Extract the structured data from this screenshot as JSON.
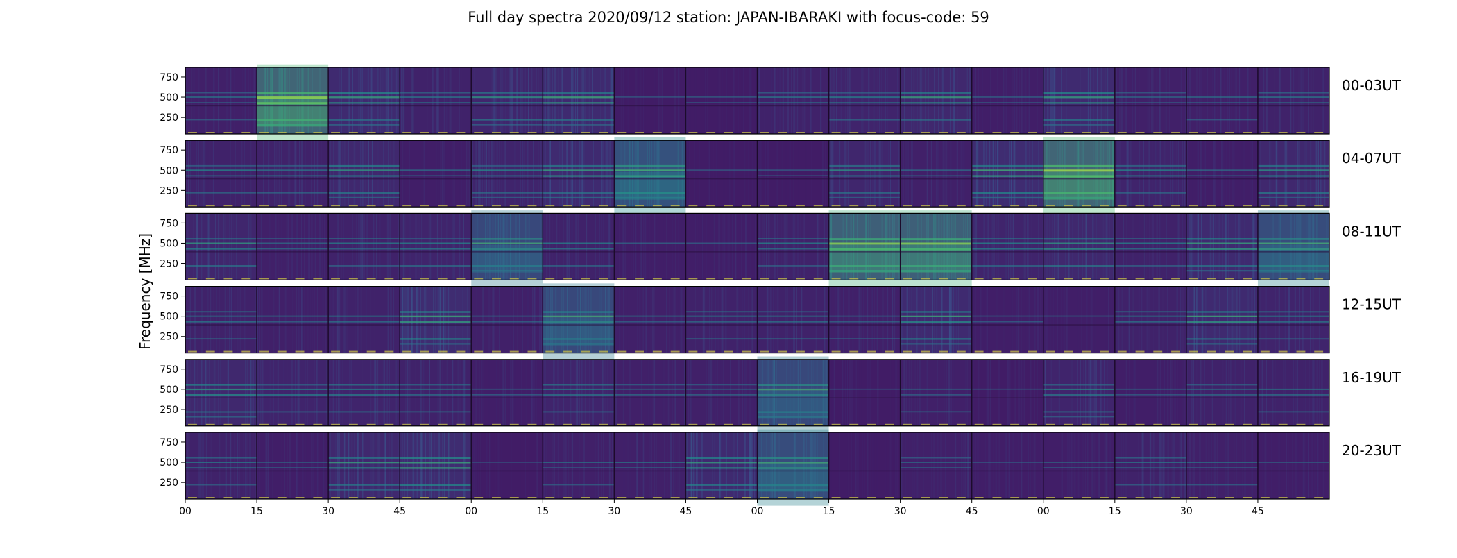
{
  "chart_data": {
    "type": "heatmap",
    "title": "Full day spectra 2020/09/12 station: JAPAN-IBARAKI with focus-code: 59",
    "ylabel": "Frequency [MHz]",
    "xlabel": "",
    "y_unit": "MHz",
    "ylim": [
      45,
      870
    ],
    "yticks": [
      250,
      500,
      750
    ],
    "xticks": [
      "00",
      "15",
      "30",
      "45",
      "00",
      "15",
      "30",
      "45",
      "00",
      "15",
      "30",
      "45",
      "00",
      "15",
      "30",
      "45"
    ],
    "colormap": "viridis",
    "grid": false,
    "segments_per_row": 16,
    "rows": [
      {
        "label": "00-03UT",
        "intensity": [
          0.3,
          0.95,
          0.55,
          0.35,
          0.45,
          0.55,
          0.2,
          0.2,
          0.35,
          0.4,
          0.5,
          0.25,
          0.55,
          0.3,
          0.3,
          0.35
        ]
      },
      {
        "label": "04-07UT",
        "intensity": [
          0.35,
          0.35,
          0.5,
          0.25,
          0.4,
          0.55,
          0.75,
          0.2,
          0.2,
          0.45,
          0.3,
          0.6,
          0.95,
          0.4,
          0.25,
          0.5
        ]
      },
      {
        "label": "08-11UT",
        "intensity": [
          0.45,
          0.3,
          0.35,
          0.4,
          0.65,
          0.35,
          0.25,
          0.25,
          0.35,
          0.9,
          0.9,
          0.4,
          0.5,
          0.35,
          0.55,
          0.7
        ]
      },
      {
        "label": "12-15UT",
        "intensity": [
          0.35,
          0.3,
          0.35,
          0.6,
          0.3,
          0.65,
          0.3,
          0.35,
          0.35,
          0.3,
          0.55,
          0.25,
          0.25,
          0.35,
          0.55,
          0.4
        ]
      },
      {
        "label": "16-19UT",
        "intensity": [
          0.5,
          0.4,
          0.4,
          0.35,
          0.25,
          0.4,
          0.3,
          0.3,
          0.65,
          0.2,
          0.3,
          0.2,
          0.4,
          0.25,
          0.35,
          0.35
        ]
      },
      {
        "label": "20-23UT",
        "intensity": [
          0.35,
          0.25,
          0.5,
          0.6,
          0.2,
          0.3,
          0.3,
          0.55,
          0.7,
          0.2,
          0.3,
          0.25,
          0.25,
          0.35,
          0.3,
          0.25
        ]
      }
    ]
  }
}
